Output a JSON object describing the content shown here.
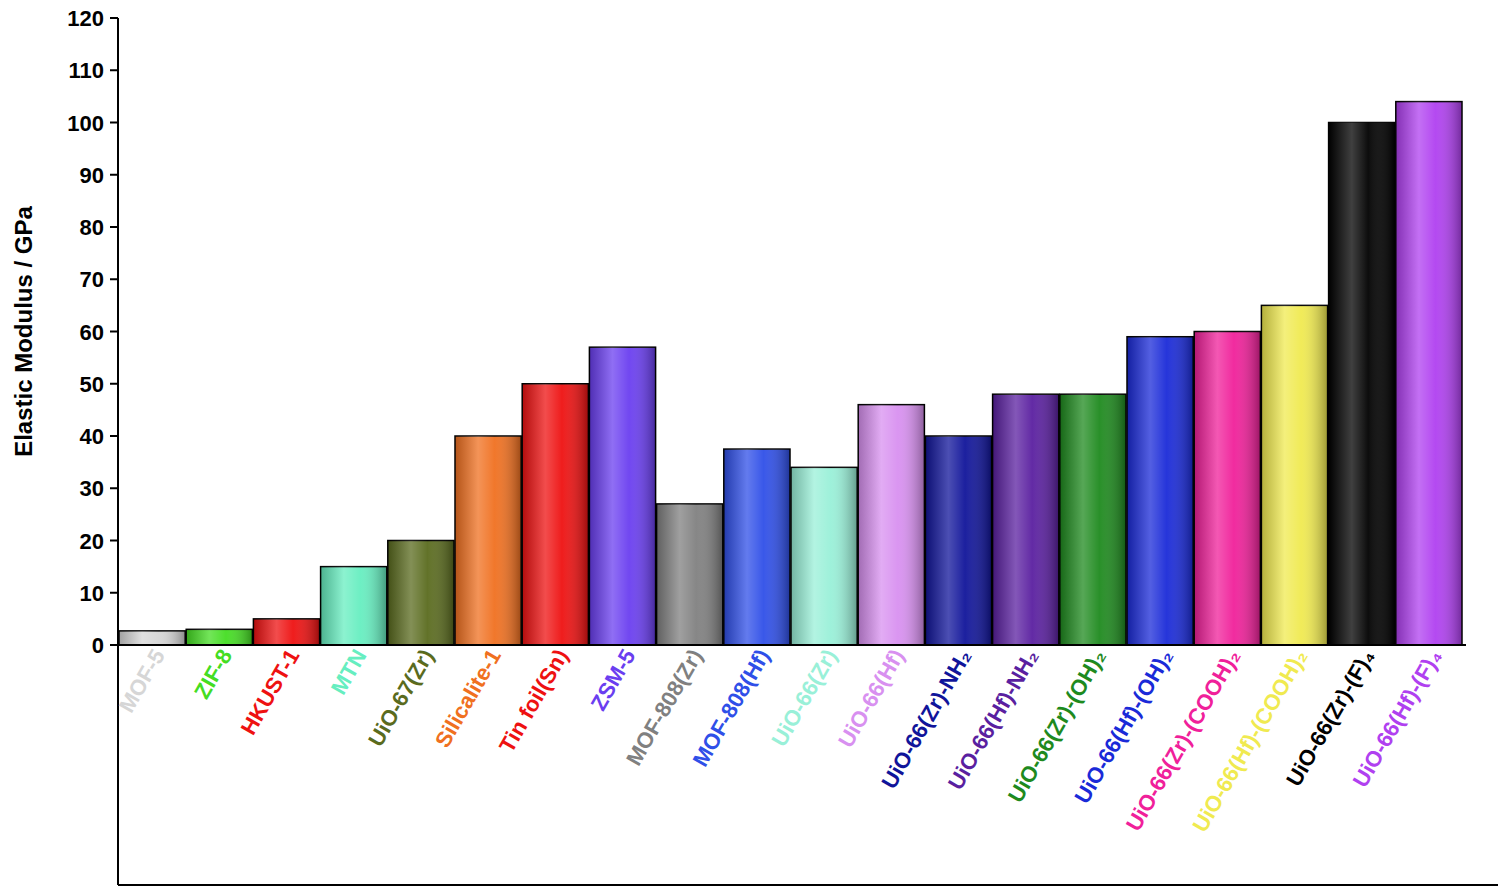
{
  "chart_data": {
    "type": "bar",
    "y_label": "Elastic Modulus / GPa",
    "categories": [
      "MOF-5",
      "ZIF-8",
      "HKUST-1",
      "MTN",
      "UiO-67(Zr)",
      "Silicalite-1",
      "Tin foil(Sn)",
      "ZSM-5",
      "MOF-808(Zr)",
      "MOF-808(Hf)",
      "UiO-66(Zr)",
      "UiO-66(Hf)",
      "UiO-66(Zr)-NH₂",
      "UiO-66(Hf)-NH₂",
      "UiO-66(Zr)-(OH)₂",
      "UiO-66(Hf)-(OH)₂",
      "UiO-66(Zr)-(COOH)₂",
      "UiO-66(Hf)-(COOH)₂",
      "UiO-66(Zr)-(F)₄",
      "UiO-66(Hf)-(F)₄"
    ],
    "values": [
      2.7,
      3,
      5,
      15,
      20,
      40,
      50,
      57,
      27,
      37.5,
      34,
      46,
      40,
      48,
      48,
      59,
      60,
      65,
      100,
      104
    ],
    "colors": [
      "#d6d6d6",
      "#44dd22",
      "#ee1111",
      "#66eec0",
      "#5a6b1e",
      "#f07020",
      "#ee1111",
      "#6a3ef0",
      "#808080",
      "#2f4fe8",
      "#99f0d8",
      "#d890f0",
      "#10149a",
      "#5a1fa0",
      "#1e8a1e",
      "#1a2ad8",
      "#f0209a",
      "#f0ea50",
      "#000000",
      "#b040f0"
    ],
    "ylim": [
      0,
      120
    ],
    "yticks": [
      0,
      10,
      20,
      30,
      40,
      50,
      60,
      70,
      80,
      90,
      100,
      110,
      120
    ],
    "grid": false
  }
}
